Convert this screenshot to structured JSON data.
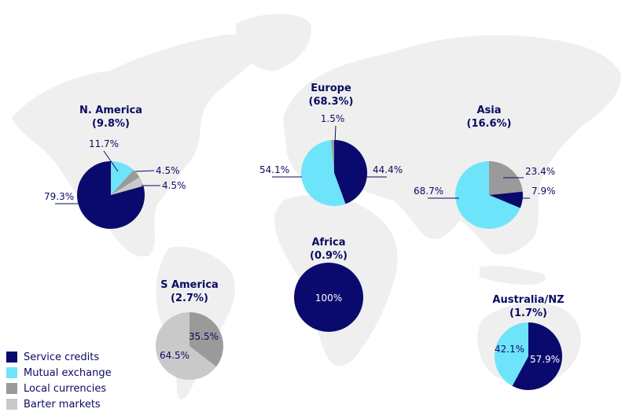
{
  "colors": {
    "service_credits": "#0a0a6e",
    "mutual_exchange": "#6ee4fb",
    "local_currencies": "#9a9a9a",
    "barter_markets": "#c9c9c9",
    "land": "#efefef",
    "text": "#0b0b63"
  },
  "legend": [
    {
      "label": "Service credits",
      "color": "#0a0a6e"
    },
    {
      "label": "Mutual exchange",
      "color": "#6ee4fb"
    },
    {
      "label": "Local currencies",
      "color": "#9a9a9a"
    },
    {
      "label": "Barter markets",
      "color": "#c9c9c9"
    }
  ],
  "chart_data": {
    "type": "pie",
    "categories": [
      "Service credits",
      "Mutual exchange",
      "Local currencies",
      "Barter markets"
    ],
    "regions": [
      {
        "name": "N. America",
        "share": "(9.8%)",
        "slices": [
          {
            "category": "Mutual exchange",
            "value": 11.7,
            "label": "11.7%"
          },
          {
            "category": "Local currencies",
            "value": 4.5,
            "label": "4.5%"
          },
          {
            "category": "Barter markets",
            "value": 4.5,
            "label": "4.5%"
          },
          {
            "category": "Service credits",
            "value": 79.3,
            "label": "79.3%"
          }
        ]
      },
      {
        "name": "Europe",
        "share": "(68.3%)",
        "slices": [
          {
            "category": "Service credits",
            "value": 44.4,
            "label": "44.4%"
          },
          {
            "category": "Mutual exchange",
            "value": 54.1,
            "label": "54.1%"
          },
          {
            "category": "Local currencies",
            "value": 1.5,
            "label": "1.5%"
          }
        ]
      },
      {
        "name": "Asia",
        "share": "(16.6%)",
        "slices": [
          {
            "category": "Local currencies",
            "value": 23.4,
            "label": "23.4%"
          },
          {
            "category": "Service credits",
            "value": 7.9,
            "label": "7.9%"
          },
          {
            "category": "Mutual exchange",
            "value": 68.7,
            "label": "68.7%"
          }
        ]
      },
      {
        "name": "Africa",
        "share": "(0.9%)",
        "slices": [
          {
            "category": "Service credits",
            "value": 100,
            "label": "100%"
          }
        ]
      },
      {
        "name": "S America",
        "share": "(2.7%)",
        "slices": [
          {
            "category": "Local currencies",
            "value": 35.5,
            "label": "35.5%"
          },
          {
            "category": "Barter markets",
            "value": 64.5,
            "label": "64.5%"
          }
        ]
      },
      {
        "name": "Australia/NZ",
        "share": "(1.7%)",
        "slices": [
          {
            "category": "Service credits",
            "value": 57.9,
            "label": "57.9%"
          },
          {
            "category": "Mutual exchange",
            "value": 42.1,
            "label": "42.1%"
          }
        ]
      }
    ]
  }
}
